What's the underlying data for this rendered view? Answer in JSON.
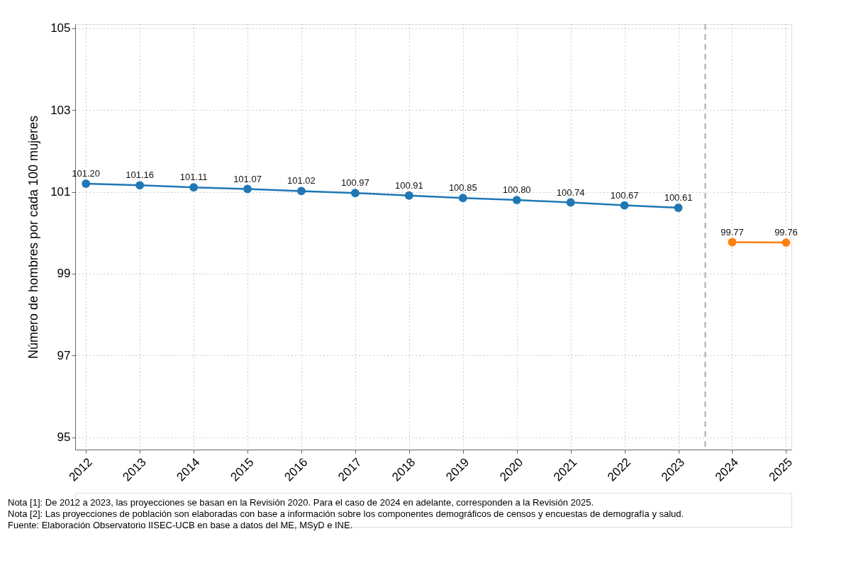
{
  "chart_data": {
    "type": "line",
    "ylabel": "Número de hombres por cada 100 mujeres",
    "x": [
      2012,
      2013,
      2014,
      2015,
      2016,
      2017,
      2018,
      2019,
      2020,
      2021,
      2022,
      2023
    ],
    "series": [
      {
        "color": "#1f77b4",
        "values": [
          101.2,
          101.16,
          101.11,
          101.07,
          101.02,
          100.97,
          100.91,
          100.85,
          100.8,
          100.74,
          100.67,
          100.61
        ],
        "value_labels": [
          "101.20",
          "101.16",
          "101.11",
          "101.07",
          "101.02",
          "100.97",
          "100.91",
          "100.85",
          "100.80",
          "100.74",
          "100.67",
          "100.61"
        ]
      },
      {
        "color": "#ff7f0e",
        "x": [
          2024,
          2025
        ],
        "values": [
          99.77,
          99.76
        ],
        "value_labels": [
          "99.77",
          "99.76"
        ]
      }
    ],
    "xlim": [
      2011.8,
      2025.1
    ],
    "xticks": [
      2012,
      2013,
      2014,
      2015,
      2016,
      2017,
      2018,
      2019,
      2020,
      2021,
      2022,
      2023,
      2024,
      2025
    ],
    "ylim": [
      94.7,
      105.1
    ],
    "yticks": [
      95,
      97,
      99,
      101,
      103,
      105
    ],
    "grid": true,
    "marker": "circle",
    "line_style": "solid",
    "ref_lines": [
      {
        "axis": "x",
        "value": 2023.5,
        "color": "#aaaaaa",
        "line_style": "dashed"
      }
    ],
    "annotations": [
      "Nota [1]: De 2012 a 2023, las proyecciones se basan en la Revisión 2020. Para el caso de 2024 en adelante, corresponden a la Revisión 2025.",
      "Nota [2]: Las proyecciones de población son elaboradas con base a información sobre los componentes demográficos de censos y encuestas de demografía y salud.",
      "Fuente: Elaboración Observatorio IISEC-UCB en base a datos del ME, MSyD e INE."
    ]
  }
}
